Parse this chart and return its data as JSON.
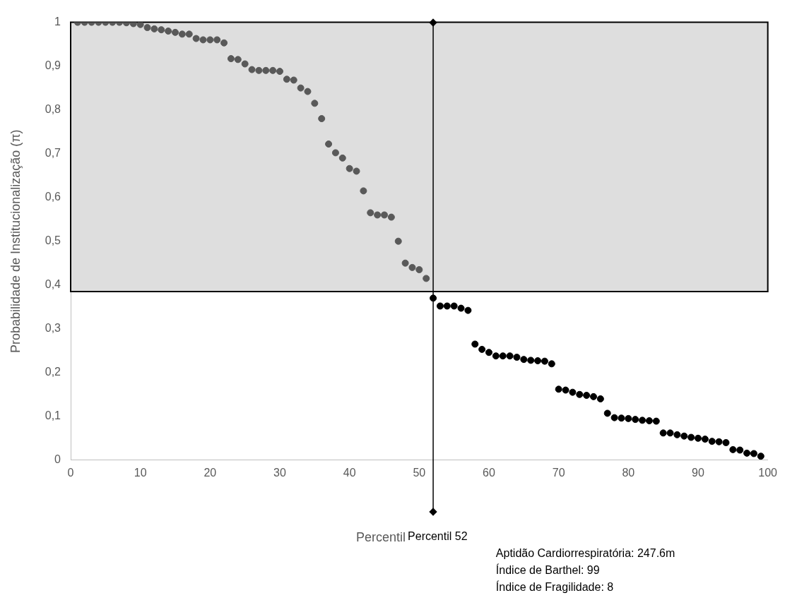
{
  "chart_data": {
    "type": "scatter",
    "xlabel": "Percentil",
    "ylabel": "Probabilidade de Institucionalização (π)",
    "xlim": [
      0,
      100
    ],
    "xticks": [
      0,
      10,
      20,
      30,
      40,
      50,
      60,
      70,
      80,
      90,
      100
    ],
    "ylim": [
      0,
      1
    ],
    "yticks": [
      0,
      {
        "value": 0.1,
        "label": "0,1"
      },
      {
        "value": 0.2,
        "label": "0,2"
      },
      {
        "value": 0.3,
        "label": "0,3"
      },
      {
        "value": 0.4,
        "label": "0,4"
      },
      {
        "value": 0.5,
        "label": "0,5"
      },
      {
        "value": 0.6,
        "label": "0,6"
      },
      {
        "value": 0.7,
        "label": "0,7"
      },
      {
        "value": 0.8,
        "label": "0,8"
      },
      {
        "value": 0.9,
        "label": "0,9"
      },
      1
    ],
    "grid": false,
    "legend": false,
    "marker": "circle",
    "series": [
      {
        "color": "#595959",
        "x": [
          1,
          2,
          3,
          4,
          5,
          6,
          7,
          8,
          9,
          10,
          11,
          12,
          13,
          14,
          15,
          16,
          17,
          18,
          19,
          20,
          21,
          22,
          23,
          24,
          25,
          26,
          27,
          28,
          29,
          30,
          31,
          32,
          33,
          34,
          35,
          36,
          37,
          38,
          39,
          40,
          41,
          42,
          43,
          44,
          45,
          46,
          47,
          48,
          49,
          50,
          51
        ],
        "values": [
          1,
          1,
          1,
          1,
          1,
          1,
          1,
          0.999,
          0.997,
          0.995,
          0.988,
          0.985,
          0.983,
          0.98,
          0.977,
          0.973,
          0.973,
          0.963,
          0.96,
          0.96,
          0.96,
          0.953,
          0.917,
          0.915,
          0.905,
          0.892,
          0.89,
          0.89,
          0.89,
          0.888,
          0.87,
          0.868,
          0.85,
          0.842,
          0.815,
          0.78,
          0.722,
          0.702,
          0.69,
          0.666,
          0.66,
          0.615,
          0.565,
          0.56,
          0.56,
          0.555,
          0.5,
          0.45,
          0.44,
          0.435,
          0.415
        ]
      },
      {
        "color": "#000000",
        "x": [
          52,
          53,
          54,
          55,
          56,
          57,
          58,
          59,
          60,
          61,
          62,
          63,
          64,
          65,
          66,
          67,
          68,
          69,
          70,
          71,
          72,
          73,
          74,
          75,
          76,
          77,
          78,
          79,
          80,
          81,
          82,
          83,
          84,
          85,
          86,
          87,
          88,
          89,
          90,
          91,
          92,
          93,
          94,
          95,
          96,
          97,
          98,
          99
        ],
        "values": [
          0.37,
          0.352,
          0.352,
          0.352,
          0.347,
          0.342,
          0.265,
          0.253,
          0.246,
          0.238,
          0.238,
          0.238,
          0.235,
          0.23,
          0.228,
          0.227,
          0.226,
          0.22,
          0.162,
          0.16,
          0.155,
          0.15,
          0.148,
          0.145,
          0.14,
          0.107,
          0.097,
          0.096,
          0.095,
          0.093,
          0.091,
          0.09,
          0.089,
          0.062,
          0.062,
          0.058,
          0.055,
          0.052,
          0.05,
          0.048,
          0.043,
          0.042,
          0.04,
          0.024,
          0.023,
          0.016,
          0.015,
          0.009
        ]
      }
    ],
    "bands": [
      {
        "axis": "y",
        "from": 0.385,
        "to": 1,
        "color": "#dedede"
      }
    ],
    "ref_lines": [
      {
        "axis": "x",
        "value": 52,
        "label": "Percentil 52"
      }
    ],
    "annotations": [
      "Aptidão Cardiorrespiratória: 247.6m",
      "Índice de Barthel: 99",
      "Índice de Fragilidade: 8"
    ]
  }
}
